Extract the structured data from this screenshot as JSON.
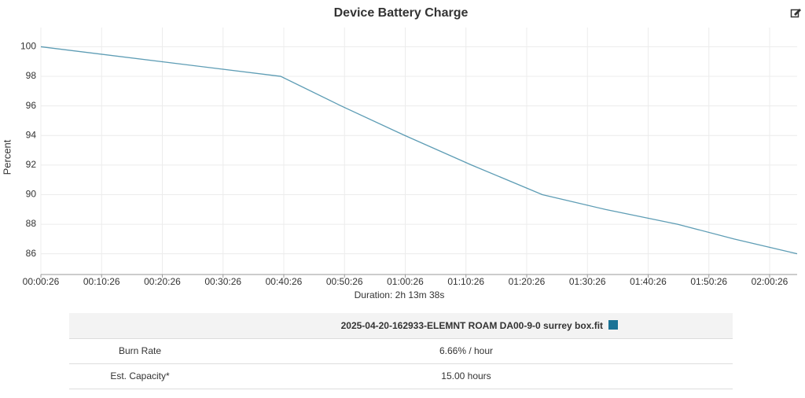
{
  "chart_data": {
    "type": "line",
    "title": "Device Battery Charge",
    "x_label": "Duration: 2h 13m 38s",
    "y_label": "Percent",
    "x": [
      26,
      2395,
      2993,
      3622,
      4282,
      4981,
      5603,
      6317,
      6876,
      7498
    ],
    "series": [
      {
        "name": "2025-04-20-162933-ELEMNT ROAM DA00-9-0 surrey box.fit",
        "color": "#1a7396",
        "values": [
          100,
          98,
          96,
          94,
          92,
          90,
          89,
          88,
          87,
          86
        ]
      }
    ],
    "xlim": [
      26,
      7498
    ],
    "xticks": [
      {
        "value": 26,
        "label": "00:00:26"
      },
      {
        "value": 626,
        "label": "00:10:26"
      },
      {
        "value": 1226,
        "label": "00:20:26"
      },
      {
        "value": 1826,
        "label": "00:30:26"
      },
      {
        "value": 2426,
        "label": "00:40:26"
      },
      {
        "value": 3026,
        "label": "00:50:26"
      },
      {
        "value": 3626,
        "label": "01:00:26"
      },
      {
        "value": 4226,
        "label": "01:10:26"
      },
      {
        "value": 4826,
        "label": "01:20:26"
      },
      {
        "value": 5426,
        "label": "01:30:26"
      },
      {
        "value": 6026,
        "label": "01:40:26"
      },
      {
        "value": 6626,
        "label": "01:50:26"
      },
      {
        "value": 7226,
        "label": "02:00:26"
      }
    ],
    "ylim": [
      84.6,
      101.3
    ],
    "yticks": [
      86,
      88,
      90,
      92,
      94,
      96,
      98,
      100
    ],
    "grid": true
  },
  "table": {
    "rows": [
      [
        "Burn Rate",
        "6.66% / hour"
      ],
      [
        "Est. Capacity*",
        "15.00 hours"
      ]
    ]
  }
}
